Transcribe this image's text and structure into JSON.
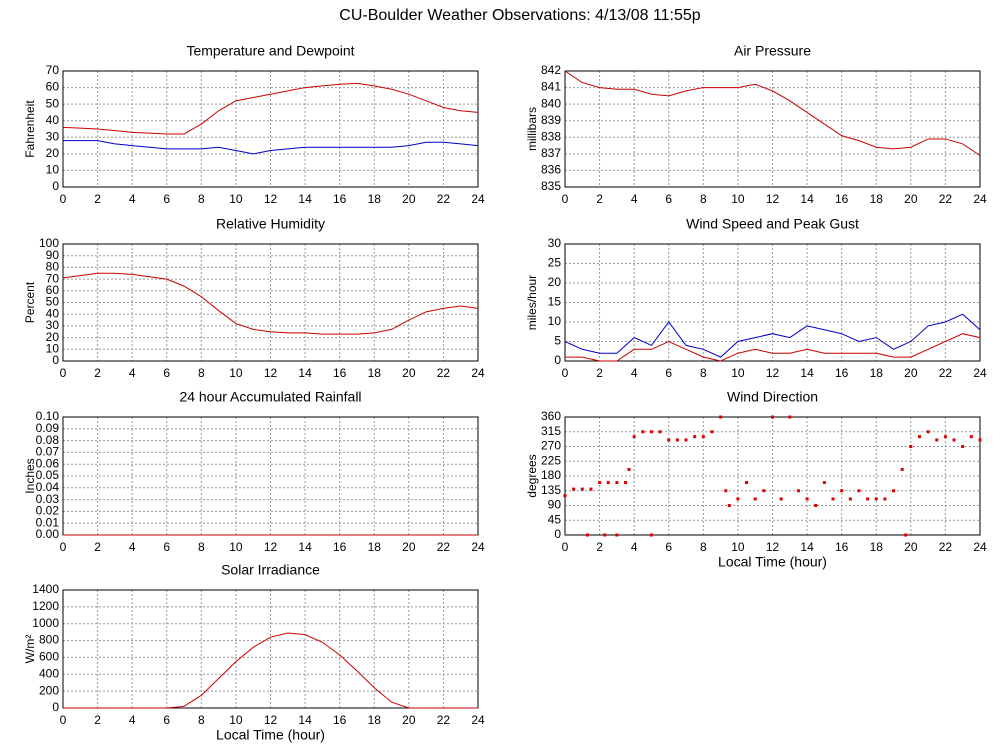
{
  "title": "CU-Boulder Weather Observations: 4/13/08 11:55p",
  "chart_data": [
    {
      "type": "line",
      "title": "Temperature and Dewpoint",
      "ylabel": "Fahrenheit",
      "x": [
        0,
        1,
        2,
        3,
        4,
        5,
        6,
        7,
        8,
        9,
        10,
        11,
        12,
        13,
        14,
        15,
        16,
        17,
        18,
        19,
        20,
        21,
        22,
        23,
        24
      ],
      "series": [
        {
          "color": "#cc0000",
          "values": [
            36,
            35.5,
            35,
            34,
            33,
            32.5,
            32,
            32,
            38,
            46,
            52,
            54,
            56,
            58,
            60,
            61,
            62,
            62.5,
            61,
            59,
            56,
            52,
            48,
            46,
            45
          ]
        },
        {
          "color": "#0000cc",
          "values": [
            28,
            28,
            28,
            26,
            25,
            24,
            23,
            23,
            23,
            24,
            22,
            20,
            22,
            23,
            24,
            24,
            24,
            24,
            24,
            24,
            25,
            27,
            27,
            26,
            25
          ]
        }
      ],
      "xlim": [
        0,
        24
      ],
      "xticks": [
        0,
        2,
        4,
        6,
        8,
        10,
        12,
        14,
        16,
        18,
        20,
        22,
        24
      ],
      "ylim": [
        0,
        70
      ],
      "yticks": [
        0,
        10,
        20,
        30,
        40,
        50,
        60,
        70
      ],
      "grid": true
    },
    {
      "type": "line",
      "title": "Air Pressure",
      "ylabel": "millibars",
      "x": [
        0,
        1,
        2,
        3,
        4,
        5,
        6,
        7,
        8,
        9,
        10,
        11,
        12,
        13,
        14,
        15,
        16,
        17,
        18,
        19,
        20,
        21,
        22,
        23,
        24
      ],
      "series": [
        {
          "color": "#cc0000",
          "values": [
            842,
            841.3,
            841,
            840.9,
            840.9,
            840.6,
            840.5,
            840.8,
            841,
            841,
            841,
            841.2,
            840.8,
            840.2,
            839.5,
            838.8,
            838.1,
            837.8,
            837.4,
            837.3,
            837.4,
            837.9,
            837.9,
            837.6,
            836.9
          ]
        }
      ],
      "xlim": [
        0,
        24
      ],
      "xticks": [
        0,
        2,
        4,
        6,
        8,
        10,
        12,
        14,
        16,
        18,
        20,
        22,
        24
      ],
      "ylim": [
        835,
        842
      ],
      "yticks": [
        835,
        836,
        837,
        838,
        839,
        840,
        841,
        842
      ],
      "grid": true
    },
    {
      "type": "line",
      "title": "Relative Humidity",
      "ylabel": "Percent",
      "x": [
        0,
        1,
        2,
        3,
        4,
        5,
        6,
        7,
        8,
        9,
        10,
        11,
        12,
        13,
        14,
        15,
        16,
        17,
        18,
        19,
        20,
        21,
        22,
        23,
        24
      ],
      "series": [
        {
          "color": "#cc0000",
          "values": [
            71,
            73,
            75,
            75,
            74,
            72,
            70,
            64,
            55,
            43,
            32,
            27,
            25,
            24,
            24,
            23,
            23,
            23,
            24,
            27,
            35,
            42,
            45,
            47,
            45
          ]
        }
      ],
      "xlim": [
        0,
        24
      ],
      "xticks": [
        0,
        2,
        4,
        6,
        8,
        10,
        12,
        14,
        16,
        18,
        20,
        22,
        24
      ],
      "ylim": [
        0,
        100
      ],
      "yticks": [
        0,
        10,
        20,
        30,
        40,
        50,
        60,
        70,
        80,
        90,
        100
      ],
      "grid": true
    },
    {
      "type": "line",
      "title": "Wind Speed and Peak Gust",
      "ylabel": "miles/hour",
      "x": [
        0,
        1,
        2,
        3,
        4,
        5,
        6,
        7,
        8,
        9,
        10,
        11,
        12,
        13,
        14,
        15,
        16,
        17,
        18,
        19,
        20,
        21,
        22,
        23,
        24
      ],
      "series": [
        {
          "color": "#0000cc",
          "values": [
            5,
            3,
            2,
            2,
            6,
            4,
            10,
            4,
            3,
            1,
            5,
            6,
            7,
            6,
            9,
            8,
            7,
            5,
            6,
            3,
            5,
            9,
            10,
            12,
            8
          ]
        },
        {
          "color": "#cc0000",
          "values": [
            1,
            1,
            0,
            0,
            3,
            3,
            5,
            3,
            1,
            0,
            2,
            3,
            2,
            2,
            3,
            2,
            2,
            2,
            2,
            1,
            1,
            3,
            5,
            7,
            6
          ]
        }
      ],
      "xlim": [
        0,
        24
      ],
      "xticks": [
        0,
        2,
        4,
        6,
        8,
        10,
        12,
        14,
        16,
        18,
        20,
        22,
        24
      ],
      "ylim": [
        0,
        30
      ],
      "yticks": [
        0,
        5,
        10,
        15,
        20,
        25,
        30
      ],
      "grid": true
    },
    {
      "type": "line",
      "title": "24 hour Accumulated Rainfall",
      "ylabel": "Inches",
      "x": [
        0,
        24
      ],
      "series": [
        {
          "color": "#cc0000",
          "values": [
            0,
            0
          ]
        }
      ],
      "xlim": [
        0,
        24
      ],
      "xticks": [
        0,
        2,
        4,
        6,
        8,
        10,
        12,
        14,
        16,
        18,
        20,
        22,
        24
      ],
      "ylim": [
        0,
        0.1
      ],
      "yticks": [
        {
          "value": 0,
          "label": "0.00"
        },
        {
          "value": 0.01,
          "label": "0.01"
        },
        {
          "value": 0.02,
          "label": "0.02"
        },
        {
          "value": 0.03,
          "label": "0.03"
        },
        {
          "value": 0.04,
          "label": "0.04"
        },
        {
          "value": 0.05,
          "label": "0.05"
        },
        {
          "value": 0.06,
          "label": "0.06"
        },
        {
          "value": 0.07,
          "label": "0.07"
        },
        {
          "value": 0.08,
          "label": "0.08"
        },
        {
          "value": 0.09,
          "label": "0.09"
        },
        {
          "value": 0.1,
          "label": "0.10"
        }
      ],
      "grid": true
    },
    {
      "type": "scatter",
      "title": "Wind Direction",
      "ylabel": "degrees",
      "xlabel": "Local Time (hour)",
      "x": [
        0,
        0.5,
        1,
        1.5,
        2,
        2.5,
        3,
        3.5,
        3.7,
        4,
        4.5,
        5,
        5.5,
        6,
        6.5,
        7,
        7.5,
        8,
        8.5,
        9,
        9.3,
        9.5,
        10,
        10.5,
        11,
        11.5,
        12,
        12.5,
        13,
        13.5,
        14,
        14.5,
        15,
        15.5,
        16,
        16.5,
        17,
        17.5,
        18,
        18.5,
        19,
        19.5,
        20,
        20.5,
        21,
        21.5,
        22,
        22.5,
        23,
        23.5,
        24,
        1.3,
        2.3,
        3,
        5,
        19.7
      ],
      "series": [
        {
          "color": "#dd0000",
          "values": [
            120,
            140,
            140,
            140,
            160,
            160,
            160,
            160,
            200,
            300,
            315,
            315,
            315,
            290,
            290,
            290,
            300,
            300,
            315,
            360,
            135,
            90,
            110,
            160,
            110,
            135,
            360,
            110,
            360,
            135,
            110,
            90,
            160,
            110,
            135,
            110,
            135,
            110,
            110,
            110,
            135,
            200,
            270,
            300,
            315,
            290,
            300,
            290,
            270,
            300,
            290,
            0,
            0,
            0,
            0,
            0
          ]
        }
      ],
      "xlim": [
        0,
        24
      ],
      "xticks": [
        0,
        2,
        4,
        6,
        8,
        10,
        12,
        14,
        16,
        18,
        20,
        22,
        24
      ],
      "ylim": [
        0,
        360
      ],
      "yticks": [
        0,
        45,
        90,
        135,
        180,
        225,
        270,
        315,
        360
      ],
      "grid": true
    },
    {
      "type": "line",
      "title": "Solar Irradiance",
      "ylabel": "W/m²",
      "xlabel": "Local Time (hour)",
      "x": [
        0,
        1,
        2,
        3,
        4,
        5,
        6,
        7,
        8,
        9,
        10,
        11,
        12,
        13,
        14,
        15,
        16,
        17,
        18,
        19,
        20,
        21,
        22,
        23,
        24
      ],
      "series": [
        {
          "color": "#cc0000",
          "values": [
            0,
            0,
            0,
            0,
            0,
            0,
            0,
            20,
            150,
            350,
            550,
            720,
            840,
            890,
            870,
            780,
            630,
            440,
            240,
            70,
            0,
            0,
            0,
            0,
            0
          ]
        }
      ],
      "xlim": [
        0,
        24
      ],
      "xticks": [
        0,
        2,
        4,
        6,
        8,
        10,
        12,
        14,
        16,
        18,
        20,
        22,
        24
      ],
      "ylim": [
        0,
        1400
      ],
      "yticks": [
        0,
        200,
        400,
        600,
        800,
        1000,
        1200,
        1400
      ],
      "grid": true
    }
  ]
}
